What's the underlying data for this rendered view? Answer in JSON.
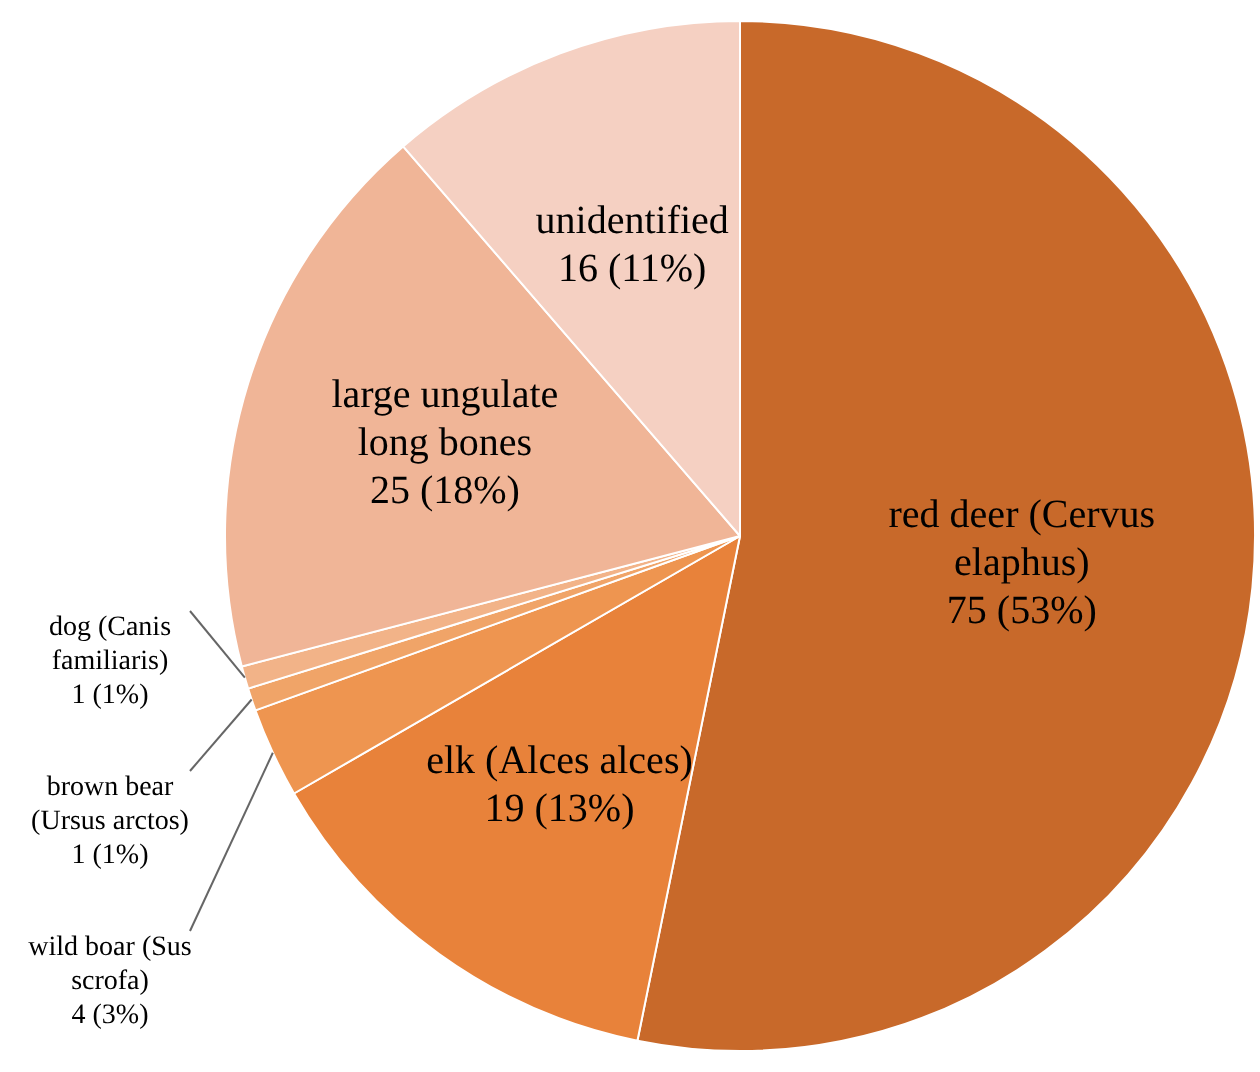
{
  "chart_data": {
    "type": "pie",
    "categories": [
      "red deer (Cervus elaphus)",
      "elk (Alces alces)",
      "wild boar (Sus scrofa)",
      "brown bear (Ursus arctos)",
      "dog (Canis familiaris)",
      "large ungulate long bones",
      "unidentified"
    ],
    "values": [
      75,
      19,
      4,
      1,
      1,
      25,
      16
    ],
    "value_labels": [
      "75 (53%)",
      "19 (13%)",
      "4 (3%)",
      "1 (1%)",
      "1 (1%)",
      "25 (18%)",
      "16 (11%)"
    ],
    "colors": [
      "#c8692a",
      "#e8823a",
      "#ee9550",
      "#f0a468",
      "#f2b388",
      "#f0b597",
      "#f5d0c2"
    ],
    "legend": false
  }
}
